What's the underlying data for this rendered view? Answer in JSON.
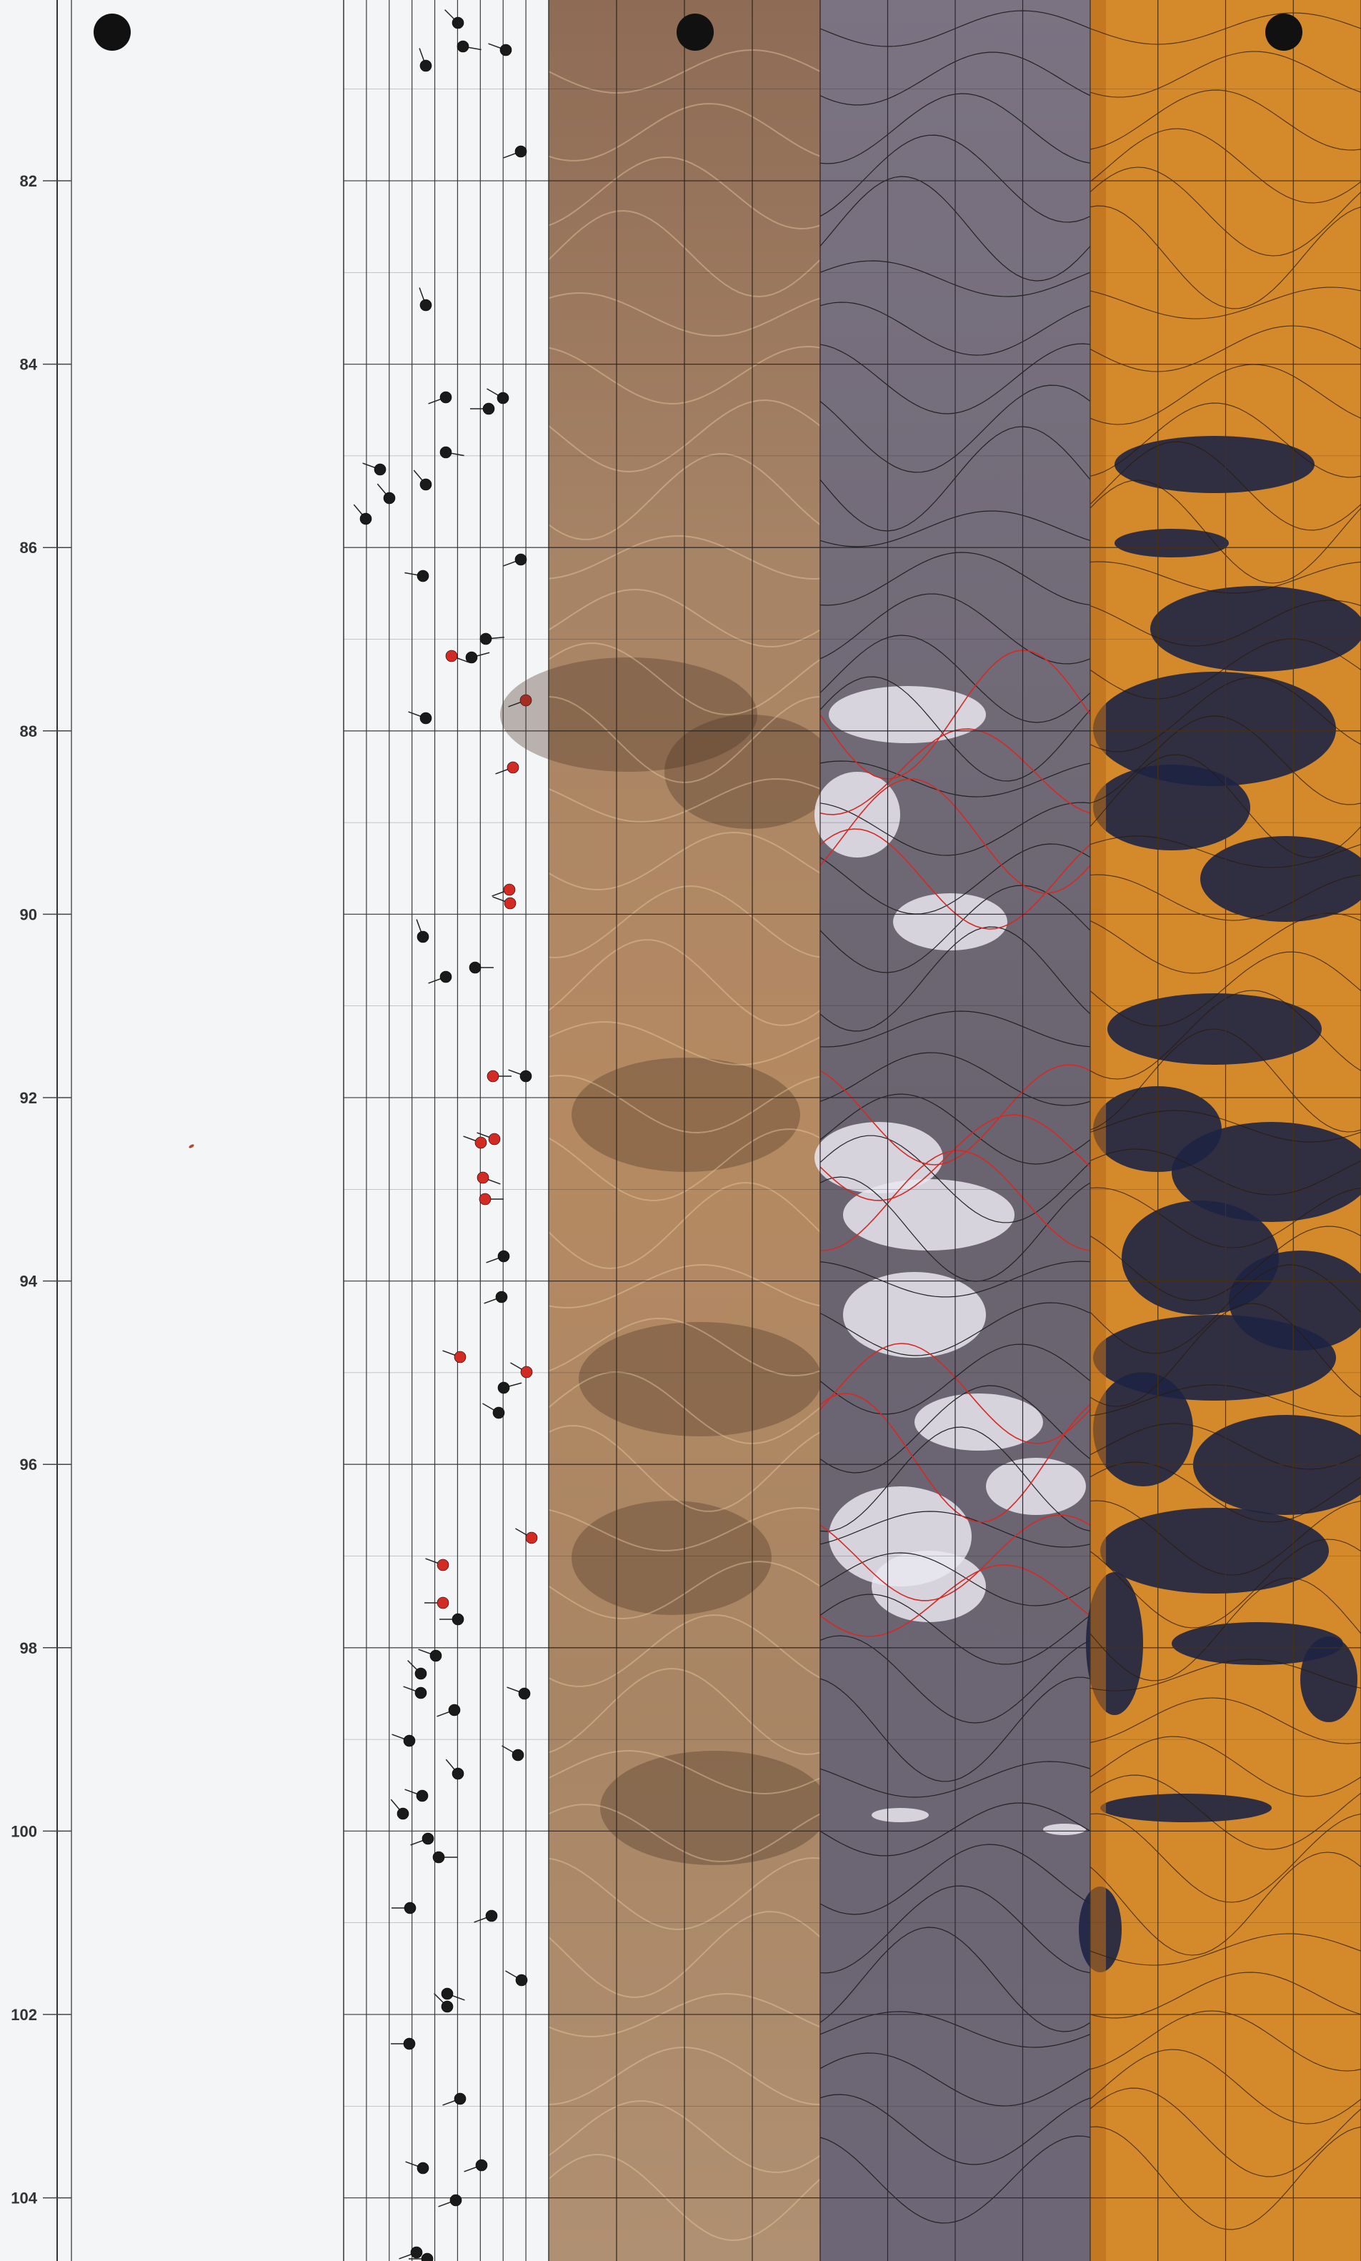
{
  "depth_track": {
    "tick_labels": [
      "82",
      "84",
      "86",
      "88",
      "90",
      "92",
      "94",
      "96",
      "98",
      "100",
      "102",
      "104"
    ]
  },
  "colors": {
    "background": "#f4f5f6",
    "grid": "#3a3a3a",
    "tadpole_default": "#1a1a1a",
    "tadpole_highlight": "#d42a24",
    "optical_image": "#a98464",
    "acoustic_image": "#6e6875",
    "amplitude_image": "#d48a2a",
    "fracture_dark": "#1e2444"
  },
  "header_markers": [
    {
      "name": "depth-panel-marker-icon"
    },
    {
      "name": "optical-panel-marker-icon"
    },
    {
      "name": "amplitude-panel-marker-icon"
    }
  ]
}
